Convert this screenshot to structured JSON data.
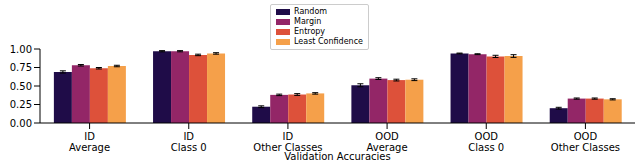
{
  "chart_data": {
    "type": "bar",
    "x_label": "Validation Accuracies",
    "categories": [
      "ID\nAverage",
      "ID\nClass 0",
      "ID\nOther Classes",
      "OOD\nAverage",
      "OOD\nClass 0",
      "OOD\nOther Classes"
    ],
    "series": [
      {
        "name": "Random",
        "color": "#1f0c48",
        "values": [
          0.69,
          0.97,
          0.22,
          0.51,
          0.94,
          0.2
        ],
        "errors": [
          0.015,
          0.008,
          0.012,
          0.02,
          0.005,
          0.012
        ]
      },
      {
        "name": "Margin",
        "color": "#932667",
        "values": [
          0.78,
          0.97,
          0.38,
          0.6,
          0.93,
          0.33
        ],
        "errors": [
          0.01,
          0.008,
          0.01,
          0.012,
          0.006,
          0.008
        ]
      },
      {
        "name": "Entropy",
        "color": "#dd513a",
        "values": [
          0.74,
          0.92,
          0.385,
          0.58,
          0.9,
          0.33
        ],
        "errors": [
          0.01,
          0.01,
          0.012,
          0.012,
          0.015,
          0.008
        ]
      },
      {
        "name": "Least Confidence",
        "color": "#f5a04a",
        "values": [
          0.77,
          0.94,
          0.4,
          0.585,
          0.905,
          0.32
        ],
        "errors": [
          0.01,
          0.01,
          0.01,
          0.012,
          0.018,
          0.008
        ]
      }
    ],
    "ylim": [
      0,
      1
    ],
    "yticks": [
      {
        "value": 0,
        "label": "0.00"
      },
      {
        "value": 0.25,
        "label": "0.25"
      },
      {
        "value": 0.5,
        "label": "0.50"
      },
      {
        "value": 0.75,
        "label": "0.75"
      },
      {
        "value": 1,
        "label": "1.00"
      }
    ],
    "grid": false,
    "legend": "top"
  }
}
